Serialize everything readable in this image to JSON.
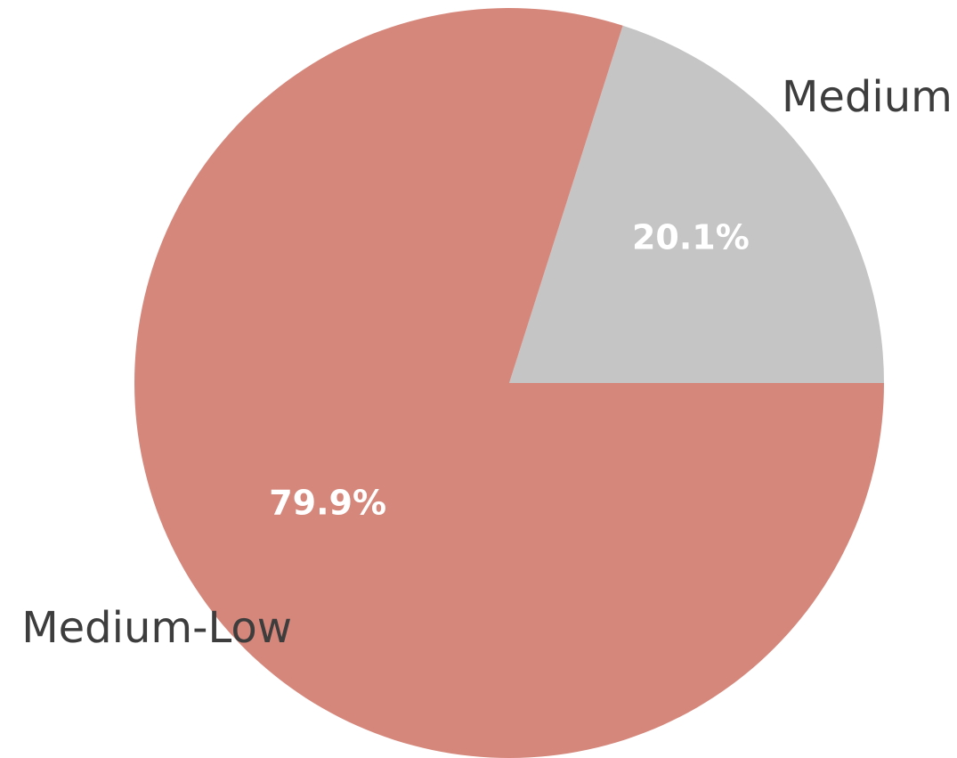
{
  "chart_data": {
    "type": "pie",
    "categories": [
      "Medium",
      "Medium-Low"
    ],
    "values": [
      20.1,
      79.9
    ],
    "value_labels": [
      "20.1%",
      "79.9%"
    ],
    "colors": [
      "#c5c5c5",
      "#d6877b"
    ]
  }
}
